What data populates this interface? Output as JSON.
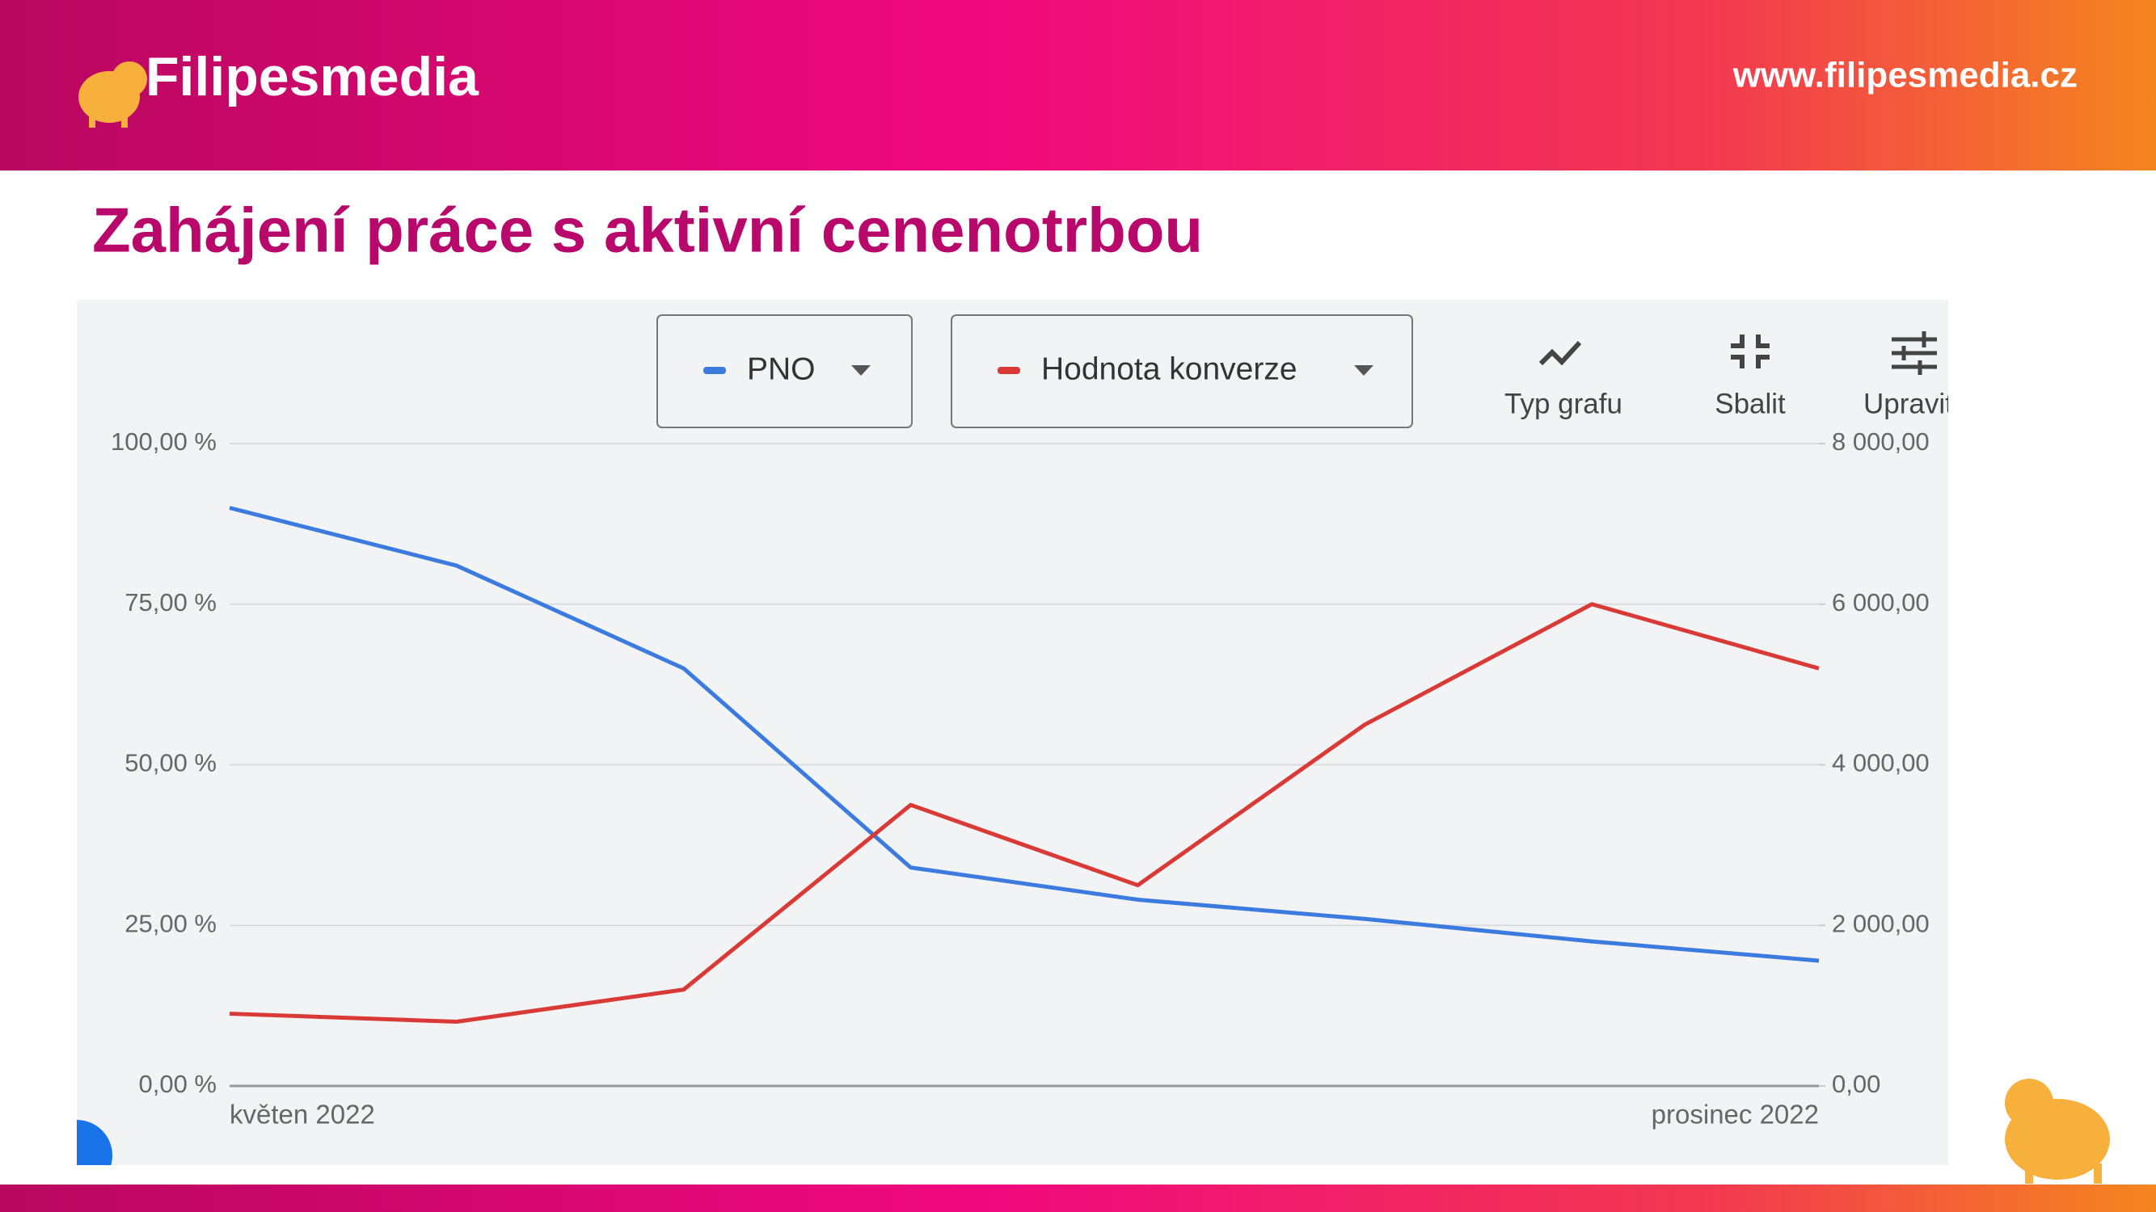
{
  "header": {
    "brand": "Filipesmedia",
    "url": "www.filipesmedia.cz"
  },
  "slide_title": "Zahájení práce s aktivní cenenotrbou",
  "toolbar": {
    "chart_type": "Typ grafu",
    "collapse": "Sbalit",
    "edit": "Upravit"
  },
  "chart_data": {
    "type": "line",
    "categories": [
      "květen 2022",
      null,
      null,
      null,
      null,
      null,
      null,
      "prosinec 2022"
    ],
    "series": [
      {
        "name": "PNO",
        "color": "#3b7be0",
        "values": [
          90,
          81,
          65,
          34,
          29,
          26,
          22.5,
          19.5
        ]
      },
      {
        "name": "Hodnota konverze",
        "color": "#d93a35",
        "axis": "y2",
        "values": [
          900,
          800,
          1200,
          3500,
          2500,
          4500,
          6000,
          5200
        ]
      }
    ],
    "ylim": [
      0,
      100
    ],
    "yticks": [
      {
        "value": 0,
        "label": "0,00 %"
      },
      {
        "value": 25,
        "label": "25,00 %"
      },
      {
        "value": 50,
        "label": "50,00 %"
      },
      {
        "value": 75,
        "label": "75,00 %"
      },
      {
        "value": 100,
        "label": "100,00 %"
      }
    ],
    "y2lim": [
      0,
      8000
    ],
    "y2ticks": [
      {
        "value": 0,
        "label": "0,00"
      },
      {
        "value": 2000,
        "label": "2 000,00"
      },
      {
        "value": 4000,
        "label": "4 000,00"
      },
      {
        "value": 6000,
        "label": "6 000,00"
      },
      {
        "value": 8000,
        "label": "8 000,00"
      }
    ],
    "grid": true
  }
}
